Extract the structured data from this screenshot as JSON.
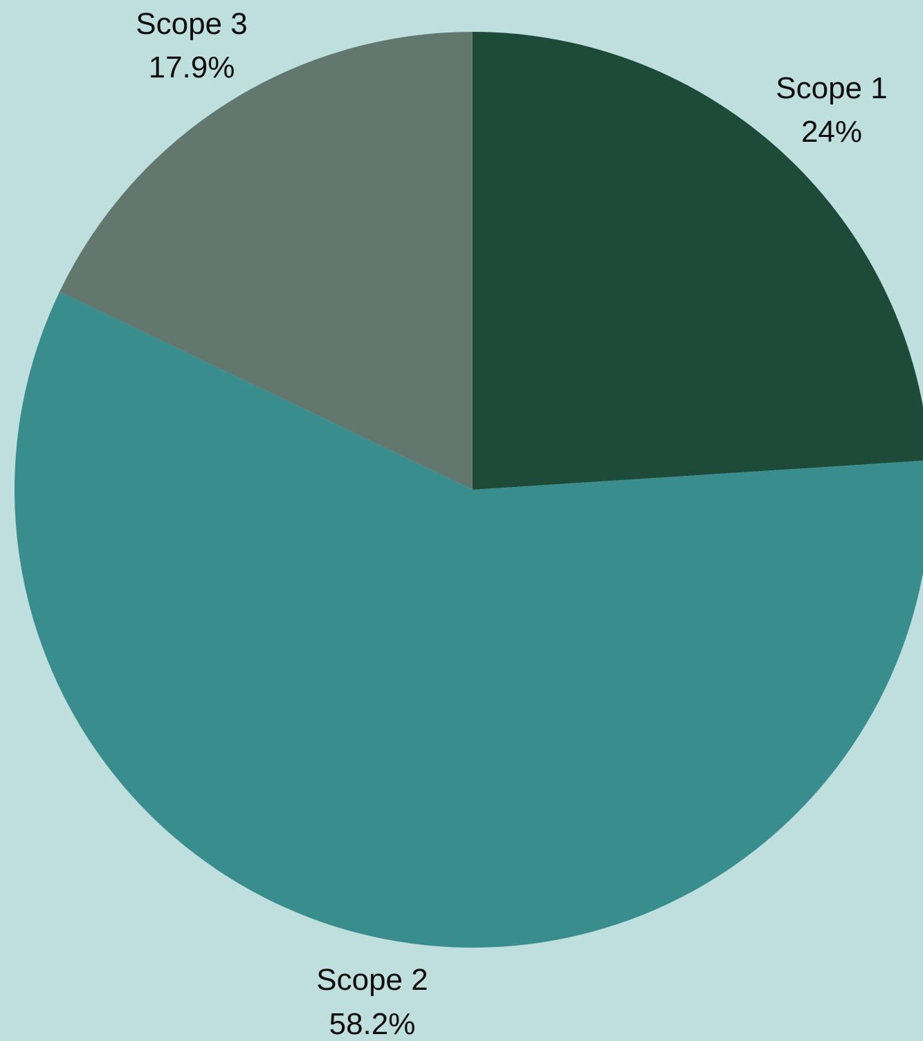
{
  "chart_data": {
    "type": "pie",
    "start_angle_deg": 0,
    "direction": "clockwise",
    "slices": [
      {
        "label": "Scope 1",
        "value": 24,
        "value_label": "24%",
        "color": "#1e4a3a"
      },
      {
        "label": "Scope 2",
        "value": 58.2,
        "value_label": "58.2%",
        "color": "#3a8d8d"
      },
      {
        "label": "Scope 3",
        "value": 17.9,
        "value_label": "17.9%",
        "color": "#62786f"
      }
    ],
    "background": "#bfdfde",
    "legend": "none"
  }
}
